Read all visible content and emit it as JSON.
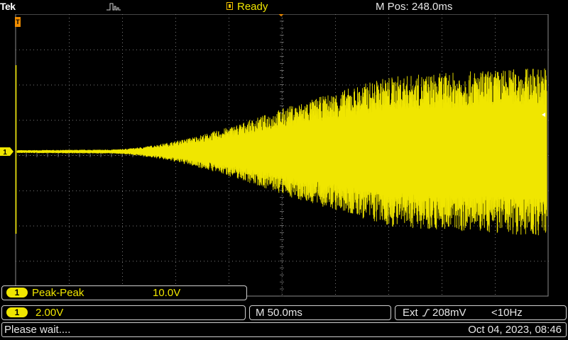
{
  "header": {
    "brand": "Tek",
    "acquisition_icon": "pulse-acquire-icon",
    "status": "Ready",
    "status_icon": "trigger-ready-icon",
    "mpos": "M Pos: 248.0ms"
  },
  "markers": {
    "channel_marker": "1",
    "trigger_position_icon": "trigger-position-icon",
    "trigger_level_icon": "trigger-level-icon"
  },
  "measurement": {
    "channel": "1",
    "name": "Peak-Peak",
    "value": "10.0V"
  },
  "channel": {
    "number": "1",
    "scale": "2.00V"
  },
  "timebase": {
    "scale": "M 50.0ms"
  },
  "trigger": {
    "source": "Ext",
    "slope_icon": "rising-edge-icon",
    "level": "208mV",
    "frequency": "<10Hz"
  },
  "status_bar": {
    "message": "Please wait....",
    "datetime": "Oct 04, 2023, 08:46"
  },
  "colors": {
    "trace": "#f0e600",
    "trigger": "#f08c00",
    "graticule": "#7a7a7a",
    "background": "#000000",
    "bezel": "#cfcfcf"
  },
  "waveform": {
    "description_time_start": 0,
    "amplitude_envelope": "rising from near-zero to full scale over the record"
  }
}
